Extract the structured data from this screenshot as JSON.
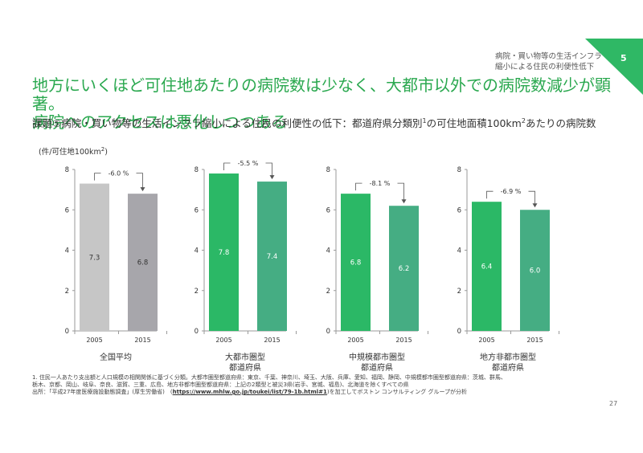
{
  "header": {
    "section_label": "病院・買い物等の生活インフラ縮小による住民の利便性低下",
    "page_badge": "5",
    "title_line1": "地方にいくほど可住地あたりの病院数は少なく、大都市以外での病院数減少が顕著。",
    "title_line2": "病院へのアクセスは悪化しつつある",
    "subtitle_main": "課題⑤病院・買い物等の生活インフラ縮小による住民の利便性の低下：都道府県分類別",
    "subtitle_sup": "1",
    "subtitle_mid": "の可住地面積100km",
    "subtitle_sup2": "2",
    "subtitle_end": "あたりの病院数",
    "unit_main": "(件/可住地100km",
    "unit_sup": "2",
    "unit_end": ")"
  },
  "colors": {
    "green_accent": "#2aa84f",
    "badge": "#2fb865"
  },
  "chart_data": [
    {
      "type": "bar",
      "name": "全国平均",
      "categories": [
        "2005",
        "2015"
      ],
      "values": [
        7.3,
        6.8
      ],
      "value_labels": [
        "7.3",
        "6.8"
      ],
      "change_label": "-6.0 %",
      "ylim": [
        0,
        8
      ],
      "yticks": [
        "0",
        "2",
        "4",
        "6",
        "8"
      ],
      "colors": [
        "#c6c6c6",
        "#a7a6ab"
      ],
      "value_label_color": "#333333"
    },
    {
      "type": "bar",
      "name": "大都市圏型都道府県",
      "categories": [
        "2005",
        "2015"
      ],
      "values": [
        7.8,
        7.4
      ],
      "value_labels": [
        "7.8",
        "7.4"
      ],
      "change_label": "-5.5 %",
      "ylim": [
        0,
        8
      ],
      "yticks": [
        "0",
        "2",
        "4",
        "6",
        "8"
      ],
      "colors": [
        "#2bb866",
        "#45ad83"
      ],
      "value_label_color": "#ffffff"
    },
    {
      "type": "bar",
      "name": "中規模都市圏型都道府県",
      "categories": [
        "2005",
        "2015"
      ],
      "values": [
        6.8,
        6.2
      ],
      "value_labels": [
        "6.8",
        "6.2"
      ],
      "change_label": "-8.1 %",
      "ylim": [
        0,
        8
      ],
      "yticks": [
        "0",
        "2",
        "4",
        "6",
        "8"
      ],
      "colors": [
        "#2bb866",
        "#45ad83"
      ],
      "value_label_color": "#ffffff"
    },
    {
      "type": "bar",
      "name": "地方非都市圏型都道府県",
      "categories": [
        "2005",
        "2015"
      ],
      "values": [
        6.4,
        6.0
      ],
      "value_labels": [
        "6.4",
        "6.0"
      ],
      "change_label": "-6.9 %",
      "ylim": [
        0,
        8
      ],
      "yticks": [
        "0",
        "2",
        "4",
        "6",
        "8"
      ],
      "colors": [
        "#2bb866",
        "#45ad83"
      ],
      "value_label_color": "#ffffff"
    }
  ],
  "chart_captions": [
    [
      "全国平均"
    ],
    [
      "大都市圏型",
      "都道府県"
    ],
    [
      "中規模都市圏型",
      "都道府県"
    ],
    [
      "地方非都市圏型",
      "都道府県"
    ]
  ],
  "footnote": {
    "line1": "1. 住民一人あたり支出額と人口規模の相関関係に基づく分類。大都市圏型都道府県：東京、千葉、神奈川、埼玉、大阪、兵庫、愛知、福岡、静岡、中規模都市圏型都道府県：茨城、群馬、",
    "line2": "栃木、京都、岡山、岐阜、奈良、滋賀、三重、広島、地方非都市圏型都道府県：上記の2類型と被災3県(岩手、宮城、福島)、北海道を除くすべての県",
    "source_prefix": "出所：「平成27年度医療施設動態調査」(厚生労働省)　(",
    "source_link": "https://www.mhlw.go.jp/toukei/list/79-1b.html#1",
    "source_suffix": ")を加工してボストン コンサルティング グループが分析"
  },
  "page_number": "27"
}
